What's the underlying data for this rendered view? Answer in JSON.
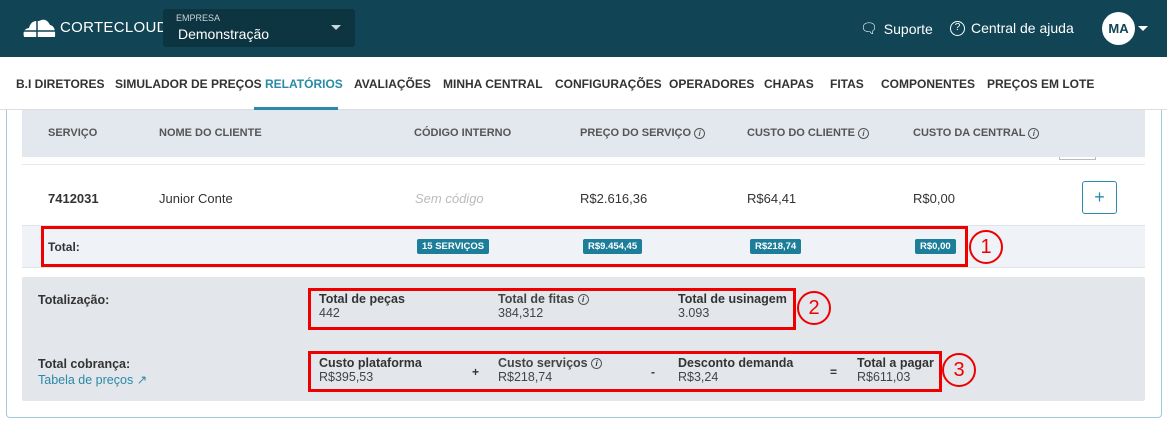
{
  "header": {
    "brand": "CORTECLOUD",
    "empresa_label": "EMPRESA",
    "empresa_value": "Demonstração",
    "support": "Suporte",
    "help": "Central de ajuda",
    "avatar": "MA"
  },
  "nav": {
    "items": [
      "B.I DIRETORES",
      "SIMULADOR DE PREÇOS",
      "RELATÓRIOS",
      "AVALIAÇÕES",
      "MINHA CENTRAL",
      "CONFIGURAÇÕES",
      "OPERADORES",
      "CHAPAS",
      "FITAS",
      "COMPONENTES",
      "PREÇOS EM LOTE"
    ],
    "active": "RELATÓRIOS"
  },
  "table": {
    "headers": [
      "SERVIÇO",
      "NOME DO CLIENTE",
      "CÓDIGO INTERNO",
      "PREÇO DO SERVIÇO",
      "CUSTO DO CLIENTE",
      "CUSTO DA CENTRAL"
    ],
    "row": {
      "servico": "7412031",
      "cliente": "Junior Conte",
      "codigo": "Sem código",
      "preco": "R$2.616,36",
      "custo_cliente": "R$64,41",
      "custo_central": "R$0,00"
    },
    "total": {
      "label": "Total:",
      "servicos": "15 SERVIÇOS",
      "preco": "R$9.454,45",
      "custo_cliente": "R$218,74",
      "custo_central": "R$0,00"
    }
  },
  "totalizacao": {
    "label": "Totalização:",
    "pecas_label": "Total de peças",
    "pecas": "442",
    "fitas_label": "Total de fitas",
    "fitas": "384,312",
    "usinagem_label": "Total de usinagem",
    "usinagem": "3.093"
  },
  "cobranca": {
    "label": "Total cobrança:",
    "link": "Tabela de preços",
    "plataforma_label": "Custo plataforma",
    "plataforma": "R$395,53",
    "servicos_label": "Custo serviços",
    "servicos": "R$218,74",
    "desconto_label": "Desconto demanda",
    "desconto": "R$3,24",
    "total_label": "Total a pagar",
    "total": "R$611,03",
    "ops": [
      "+",
      "-",
      "="
    ]
  },
  "annotations": [
    "1",
    "2",
    "3"
  ],
  "colors": {
    "header": "#114454",
    "accent": "#2a8aa8",
    "badge": "#1d7e9a",
    "annotation": "#ee0000"
  }
}
